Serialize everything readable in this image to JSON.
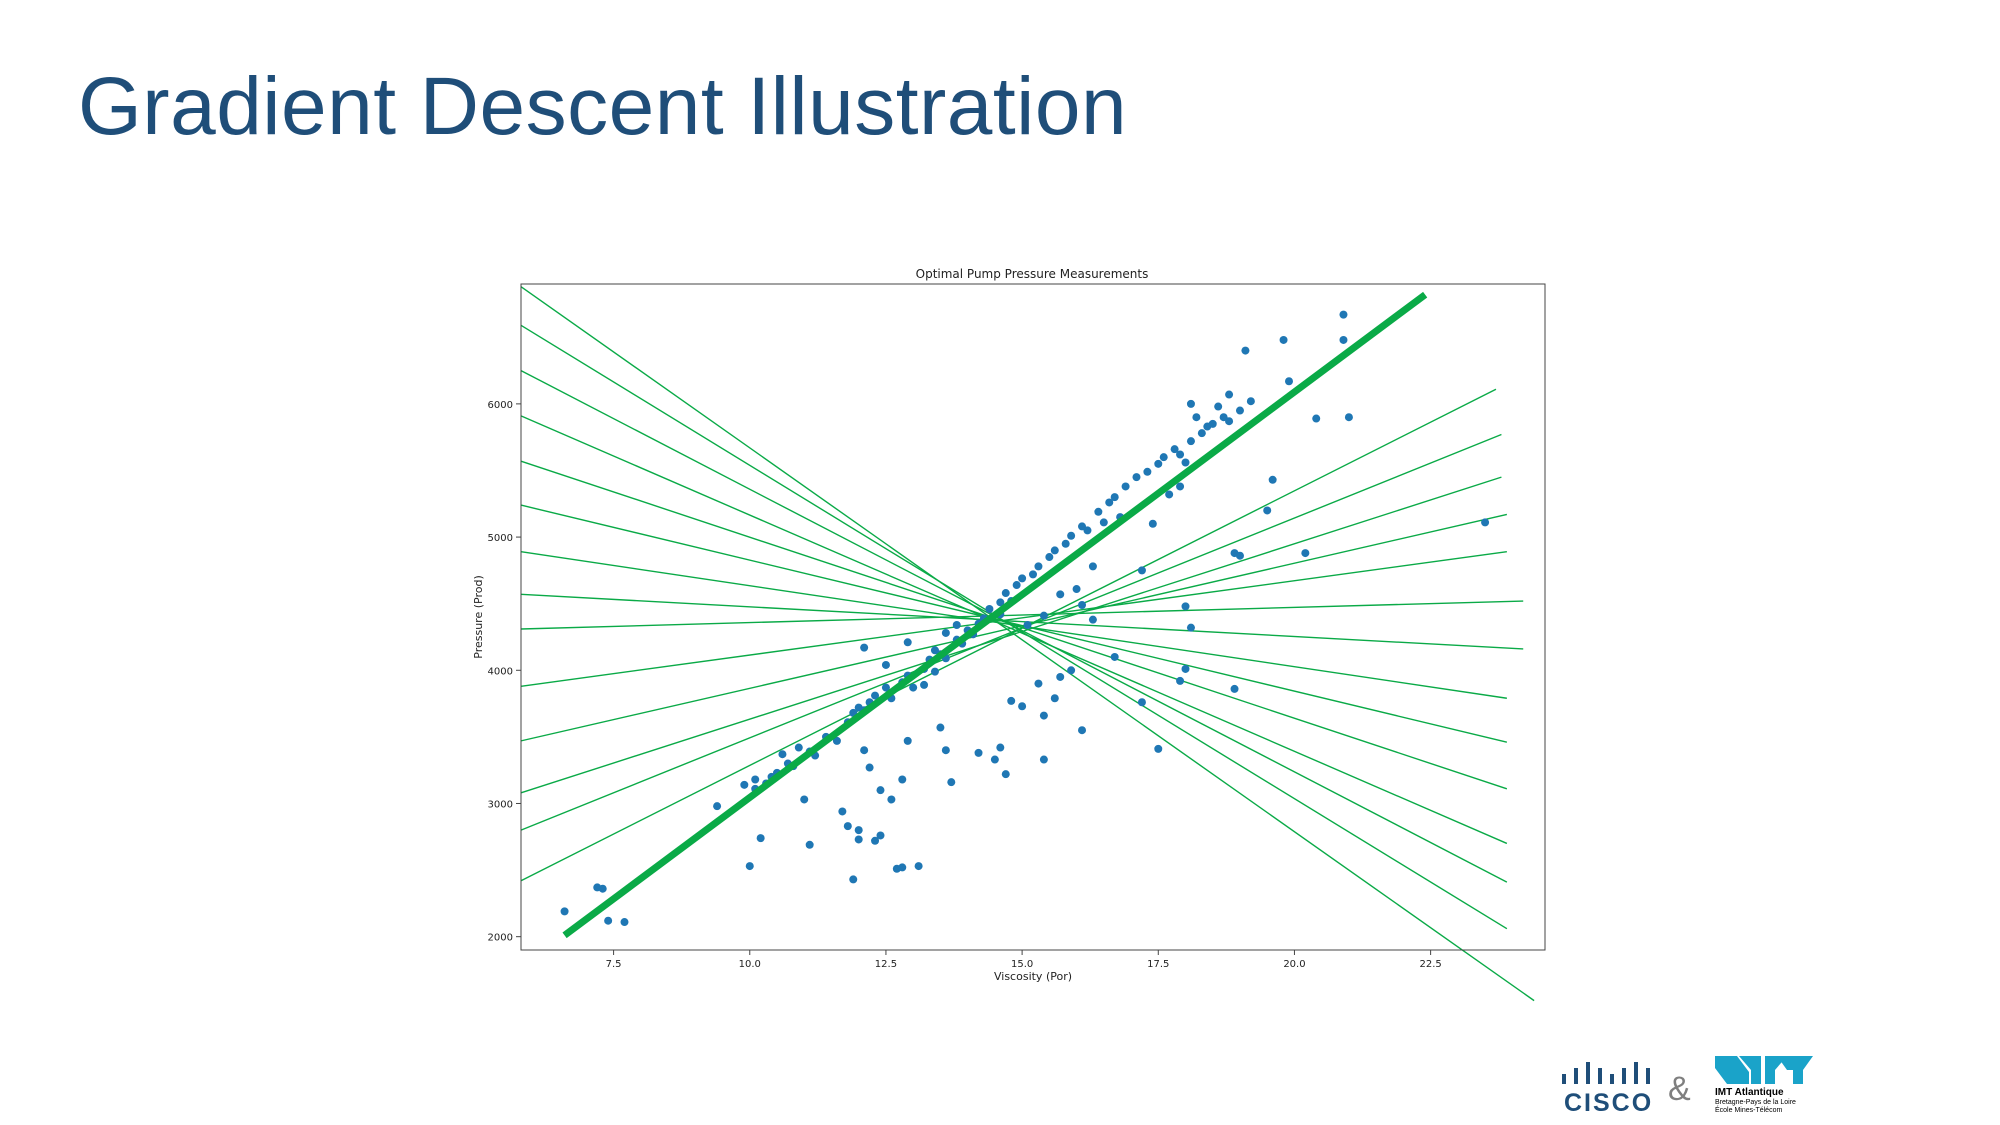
{
  "slide": {
    "title": "Gradient Descent Illustration"
  },
  "logos": {
    "cisco": "CISCO",
    "ampersand": "&",
    "imt_name": "IMT Atlantique",
    "imt_sub_1": "Bretagne-Pays de la Loire",
    "imt_sub_2": "École Mines-Télécom",
    "cisco_color": "#1f4e79",
    "imt_color": "#1aa3c9"
  },
  "chart_data": {
    "type": "scatter",
    "title": "Optimal Pump Pressure Measurements",
    "xlabel": "Viscosity (Por)",
    "ylabel": "Pressure (Prod)",
    "xlim": [
      5.8,
      24.6
    ],
    "ylim": [
      1900,
      6900
    ],
    "xticks": [
      7.5,
      10.0,
      12.5,
      15.0,
      17.5,
      20.0,
      22.5
    ],
    "yticks": [
      2000,
      3000,
      4000,
      5000,
      6000
    ],
    "colors": {
      "points": "#1f77b4",
      "best_fit": "#0aaa47",
      "candidates": "#0aaa47"
    },
    "points": [
      [
        6.6,
        2190
      ],
      [
        7.2,
        2370
      ],
      [
        7.3,
        2360
      ],
      [
        7.4,
        2120
      ],
      [
        7.7,
        2110
      ],
      [
        9.4,
        2980
      ],
      [
        9.9,
        3140
      ],
      [
        10.1,
        3180
      ],
      [
        10.1,
        3110
      ],
      [
        10.3,
        3150
      ],
      [
        10.4,
        3200
      ],
      [
        10.5,
        3230
      ],
      [
        10.6,
        3370
      ],
      [
        10.7,
        3300
      ],
      [
        10.8,
        3280
      ],
      [
        10.9,
        3420
      ],
      [
        11.1,
        3390
      ],
      [
        11.2,
        3360
      ],
      [
        11.4,
        3500
      ],
      [
        11.6,
        3470
      ],
      [
        11.8,
        3610
      ],
      [
        11.9,
        3680
      ],
      [
        12.0,
        3720
      ],
      [
        12.1,
        3700
      ],
      [
        12.2,
        3760
      ],
      [
        12.3,
        3810
      ],
      [
        12.5,
        3870
      ],
      [
        12.6,
        3790
      ],
      [
        12.8,
        3910
      ],
      [
        12.9,
        3960
      ],
      [
        13.0,
        3870
      ],
      [
        13.2,
        4010
      ],
      [
        13.3,
        4080
      ],
      [
        13.4,
        4150
      ],
      [
        13.5,
        4120
      ],
      [
        13.6,
        4090
      ],
      [
        13.8,
        4230
      ],
      [
        13.9,
        4200
      ],
      [
        14.0,
        4300
      ],
      [
        14.1,
        4270
      ],
      [
        14.2,
        4350
      ],
      [
        14.3,
        4380
      ],
      [
        14.4,
        4460
      ],
      [
        14.6,
        4510
      ],
      [
        14.7,
        4580
      ],
      [
        14.8,
        4520
      ],
      [
        14.9,
        4640
      ],
      [
        15.0,
        4690
      ],
      [
        15.2,
        4720
      ],
      [
        15.3,
        4780
      ],
      [
        15.5,
        4850
      ],
      [
        15.6,
        4900
      ],
      [
        15.8,
        4950
      ],
      [
        15.9,
        5010
      ],
      [
        16.1,
        5080
      ],
      [
        16.2,
        5050
      ],
      [
        16.4,
        5190
      ],
      [
        16.6,
        5260
      ],
      [
        16.7,
        5300
      ],
      [
        16.9,
        5380
      ],
      [
        17.1,
        5450
      ],
      [
        17.3,
        5490
      ],
      [
        17.5,
        5550
      ],
      [
        17.6,
        5600
      ],
      [
        17.8,
        5660
      ],
      [
        17.9,
        5620
      ],
      [
        18.1,
        5720
      ],
      [
        18.3,
        5780
      ],
      [
        18.4,
        5830
      ],
      [
        18.5,
        5850
      ],
      [
        18.7,
        5900
      ],
      [
        18.8,
        5870
      ],
      [
        19.0,
        5950
      ],
      [
        19.2,
        6020
      ],
      [
        12.1,
        4170
      ],
      [
        12.5,
        4040
      ],
      [
        12.9,
        4210
      ],
      [
        13.6,
        4280
      ],
      [
        13.8,
        4340
      ],
      [
        14.3,
        4390
      ],
      [
        14.6,
        4420
      ],
      [
        15.1,
        4340
      ],
      [
        15.4,
        4410
      ],
      [
        15.7,
        4570
      ],
      [
        16.0,
        4610
      ],
      [
        16.3,
        4780
      ],
      [
        16.5,
        5110
      ],
      [
        16.8,
        5150
      ],
      [
        17.2,
        4750
      ],
      [
        17.4,
        5100
      ],
      [
        17.7,
        5320
      ],
      [
        17.9,
        5380
      ],
      [
        18.0,
        5560
      ],
      [
        18.1,
        6000
      ],
      [
        18.2,
        5900
      ],
      [
        18.6,
        5980
      ],
      [
        18.8,
        6070
      ],
      [
        19.1,
        6400
      ],
      [
        19.8,
        6480
      ],
      [
        19.9,
        6170
      ],
      [
        20.4,
        5890
      ],
      [
        20.9,
        6480
      ],
      [
        20.9,
        6670
      ],
      [
        21.0,
        5900
      ],
      [
        23.5,
        5110
      ],
      [
        18.9,
        4880
      ],
      [
        19.0,
        4860
      ],
      [
        19.5,
        5200
      ],
      [
        19.6,
        5430
      ],
      [
        20.2,
        4880
      ],
      [
        18.0,
        4480
      ],
      [
        18.1,
        4320
      ],
      [
        18.0,
        4010
      ],
      [
        17.9,
        3920
      ],
      [
        18.9,
        3860
      ],
      [
        17.2,
        3760
      ],
      [
        17.5,
        3410
      ],
      [
        16.7,
        4100
      ],
      [
        16.3,
        4380
      ],
      [
        16.1,
        4490
      ],
      [
        15.9,
        4000
      ],
      [
        15.7,
        3950
      ],
      [
        15.4,
        3660
      ],
      [
        15.3,
        3900
      ],
      [
        15.0,
        3730
      ],
      [
        14.8,
        3770
      ],
      [
        14.6,
        3420
      ],
      [
        14.5,
        3330
      ],
      [
        14.7,
        3220
      ],
      [
        15.4,
        3330
      ],
      [
        15.6,
        3790
      ],
      [
        16.1,
        3550
      ],
      [
        14.2,
        3380
      ],
      [
        13.7,
        3160
      ],
      [
        13.6,
        3400
      ],
      [
        13.5,
        3570
      ],
      [
        13.4,
        3990
      ],
      [
        13.2,
        3890
      ],
      [
        12.9,
        3470
      ],
      [
        12.8,
        3180
      ],
      [
        12.6,
        3030
      ],
      [
        12.4,
        3100
      ],
      [
        12.4,
        2760
      ],
      [
        12.2,
        3270
      ],
      [
        12.1,
        3400
      ],
      [
        12.0,
        2730
      ],
      [
        12.0,
        2800
      ],
      [
        11.8,
        2830
      ],
      [
        11.7,
        2940
      ],
      [
        11.9,
        2430
      ],
      [
        12.3,
        2720
      ],
      [
        12.7,
        2510
      ],
      [
        12.8,
        2520
      ],
      [
        13.1,
        2530
      ],
      [
        11.0,
        3030
      ],
      [
        11.1,
        2690
      ],
      [
        10.2,
        2740
      ],
      [
        10.0,
        2530
      ]
    ],
    "best_fit": {
      "x": [
        6.6,
        22.4
      ],
      "y": [
        2010,
        6820
      ]
    },
    "candidate_lines": [
      {
        "x": [
          5.8,
          24.4
        ],
        "y": [
          6880,
          1520
        ]
      },
      {
        "x": [
          5.8,
          23.9
        ],
        "y": [
          6590,
          2060
        ]
      },
      {
        "x": [
          5.8,
          23.9
        ],
        "y": [
          6250,
          2410
        ]
      },
      {
        "x": [
          5.8,
          23.9
        ],
        "y": [
          5910,
          2700
        ]
      },
      {
        "x": [
          5.8,
          23.9
        ],
        "y": [
          5570,
          3110
        ]
      },
      {
        "x": [
          5.8,
          23.9
        ],
        "y": [
          5240,
          3460
        ]
      },
      {
        "x": [
          5.8,
          23.9
        ],
        "y": [
          4890,
          3790
        ]
      },
      {
        "x": [
          5.8,
          24.2
        ],
        "y": [
          4570,
          4160
        ]
      },
      {
        "x": [
          5.8,
          24.2
        ],
        "y": [
          4310,
          4520
        ]
      },
      {
        "x": [
          5.8,
          23.9
        ],
        "y": [
          3880,
          4890
        ]
      },
      {
        "x": [
          5.8,
          23.9
        ],
        "y": [
          3470,
          5170
        ]
      },
      {
        "x": [
          5.8,
          23.8
        ],
        "y": [
          3080,
          5450
        ]
      },
      {
        "x": [
          5.8,
          23.8
        ],
        "y": [
          2800,
          5770
        ]
      },
      {
        "x": [
          5.8,
          23.7
        ],
        "y": [
          2420,
          6110
        ]
      }
    ]
  }
}
